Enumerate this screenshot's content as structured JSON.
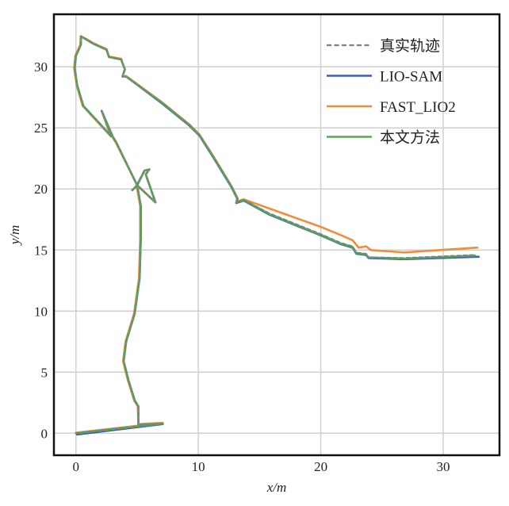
{
  "chart_data": {
    "type": "line",
    "title": "",
    "xlabel": "x/m",
    "ylabel": "y/m",
    "xlim": [
      -1.8,
      34.6
    ],
    "ylim": [
      -1.8,
      34.3
    ],
    "xticks": [
      0,
      10,
      20,
      30
    ],
    "yticks": [
      0,
      5,
      10,
      15,
      20,
      25,
      30
    ],
    "grid": true,
    "legend_position": "top-right",
    "series": [
      {
        "name": "真实轨迹",
        "color": "#7f7f7f",
        "style": "dashed",
        "points": [
          [
            0,
            0
          ],
          [
            7.1,
            0.8
          ],
          [
            5.1,
            0.7
          ],
          [
            5.1,
            2.2
          ],
          [
            4.8,
            2.7
          ],
          [
            4.3,
            4.3
          ],
          [
            3.9,
            5.9
          ],
          [
            4.1,
            7.5
          ],
          [
            4.8,
            9.8
          ],
          [
            5.2,
            12.7
          ],
          [
            5.3,
            16.0
          ],
          [
            5.3,
            18.6
          ],
          [
            5.0,
            20.3
          ],
          [
            5.6,
            21.5
          ],
          [
            6.0,
            21.6
          ],
          [
            5.7,
            21.2
          ],
          [
            6.5,
            18.9
          ],
          [
            5.0,
            20.3
          ],
          [
            4.6,
            19.9
          ],
          [
            5.0,
            20.3
          ],
          [
            3.3,
            23.8
          ],
          [
            3.0,
            24.3
          ],
          [
            2.1,
            26.4
          ],
          [
            2.9,
            24.3
          ],
          [
            0.6,
            26.8
          ],
          [
            0.1,
            28.5
          ],
          [
            -0.1,
            29.9
          ],
          [
            0.0,
            30.9
          ],
          [
            0.4,
            31.8
          ],
          [
            0.4,
            32.5
          ],
          [
            0.9,
            32.2
          ],
          [
            1.4,
            31.9
          ],
          [
            2.5,
            31.4
          ],
          [
            2.7,
            30.8
          ],
          [
            3.7,
            30.6
          ],
          [
            3.8,
            30.3
          ],
          [
            4.0,
            29.8
          ],
          [
            3.8,
            29.2
          ],
          [
            4.1,
            29.2
          ],
          [
            7.1,
            27.0
          ],
          [
            9.3,
            25.2
          ],
          [
            10.1,
            24.4
          ],
          [
            11.3,
            22.5
          ],
          [
            12.7,
            20.2
          ],
          [
            13.2,
            19.2
          ],
          [
            13.1,
            18.9
          ],
          [
            13.7,
            19.1
          ],
          [
            15.8,
            18.0
          ],
          [
            20.0,
            16.3
          ],
          [
            21.6,
            15.6
          ],
          [
            22.6,
            15.3
          ],
          [
            22.9,
            14.8
          ],
          [
            23.7,
            14.7
          ],
          [
            23.9,
            14.4
          ],
          [
            26.8,
            14.35
          ],
          [
            32.6,
            14.6
          ]
        ]
      },
      {
        "name": "LIO-SAM",
        "color": "#3a5fb0",
        "style": "solid",
        "points": [
          [
            0.1,
            -0.1
          ],
          [
            7.1,
            0.75
          ],
          [
            5.1,
            0.7
          ],
          [
            5.1,
            2.2
          ],
          [
            4.8,
            2.7
          ],
          [
            4.3,
            4.3
          ],
          [
            3.9,
            5.9
          ],
          [
            4.1,
            7.5
          ],
          [
            4.8,
            9.8
          ],
          [
            5.2,
            12.7
          ],
          [
            5.3,
            16.0
          ],
          [
            5.3,
            18.6
          ],
          [
            5.0,
            20.3
          ],
          [
            5.6,
            21.5
          ],
          [
            6.0,
            21.6
          ],
          [
            5.7,
            21.2
          ],
          [
            6.5,
            18.9
          ],
          [
            5.0,
            20.3
          ],
          [
            4.6,
            19.9
          ],
          [
            5.0,
            20.3
          ],
          [
            3.3,
            23.8
          ],
          [
            3.0,
            24.3
          ],
          [
            2.1,
            26.4
          ],
          [
            2.9,
            24.3
          ],
          [
            0.6,
            26.8
          ],
          [
            0.1,
            28.5
          ],
          [
            -0.1,
            29.9
          ],
          [
            0.0,
            30.9
          ],
          [
            0.4,
            31.8
          ],
          [
            0.4,
            32.5
          ],
          [
            0.9,
            32.2
          ],
          [
            1.4,
            31.9
          ],
          [
            2.5,
            31.4
          ],
          [
            2.7,
            30.8
          ],
          [
            3.7,
            30.6
          ],
          [
            3.8,
            30.3
          ],
          [
            4.0,
            29.8
          ],
          [
            3.8,
            29.2
          ],
          [
            4.1,
            29.2
          ],
          [
            7.1,
            26.95
          ],
          [
            9.3,
            25.15
          ],
          [
            10.1,
            24.35
          ],
          [
            11.3,
            22.45
          ],
          [
            12.7,
            20.15
          ],
          [
            13.2,
            19.15
          ],
          [
            13.1,
            18.85
          ],
          [
            13.7,
            19.05
          ],
          [
            15.8,
            17.9
          ],
          [
            20.0,
            16.2
          ],
          [
            21.6,
            15.5
          ],
          [
            22.6,
            15.2
          ],
          [
            22.9,
            14.7
          ],
          [
            23.7,
            14.6
          ],
          [
            23.9,
            14.35
          ],
          [
            26.8,
            14.25
          ],
          [
            32.9,
            14.45
          ]
        ]
      },
      {
        "name": "FAST_LIO2",
        "color": "#f28c3c",
        "style": "solid",
        "points": [
          [
            0,
            0.05
          ],
          [
            7.1,
            0.85
          ],
          [
            5.1,
            0.75
          ],
          [
            5.05,
            2.2
          ],
          [
            4.75,
            2.7
          ],
          [
            4.25,
            4.3
          ],
          [
            3.85,
            5.9
          ],
          [
            4.05,
            7.5
          ],
          [
            4.75,
            9.8
          ],
          [
            5.15,
            12.7
          ],
          [
            5.25,
            16.0
          ],
          [
            5.25,
            18.6
          ],
          [
            4.95,
            20.3
          ],
          [
            5.6,
            21.5
          ],
          [
            6.0,
            21.6
          ],
          [
            5.7,
            21.2
          ],
          [
            6.5,
            18.9
          ],
          [
            5.0,
            20.3
          ],
          [
            4.6,
            19.9
          ],
          [
            5.0,
            20.3
          ],
          [
            3.25,
            23.8
          ],
          [
            2.95,
            24.3
          ],
          [
            2.1,
            26.4
          ],
          [
            2.85,
            24.3
          ],
          [
            0.55,
            26.8
          ],
          [
            0.05,
            28.5
          ],
          [
            -0.15,
            29.9
          ],
          [
            -0.05,
            30.9
          ],
          [
            0.35,
            31.8
          ],
          [
            0.4,
            32.5
          ],
          [
            0.9,
            32.25
          ],
          [
            1.4,
            31.95
          ],
          [
            2.5,
            31.45
          ],
          [
            2.7,
            30.85
          ],
          [
            3.7,
            30.65
          ],
          [
            3.8,
            30.3
          ],
          [
            4.0,
            29.8
          ],
          [
            3.8,
            29.2
          ],
          [
            4.1,
            29.25
          ],
          [
            7.1,
            27.05
          ],
          [
            9.3,
            25.25
          ],
          [
            10.1,
            24.45
          ],
          [
            11.3,
            22.55
          ],
          [
            12.7,
            20.25
          ],
          [
            13.2,
            19.25
          ],
          [
            13.1,
            18.95
          ],
          [
            13.7,
            19.15
          ],
          [
            15.8,
            18.4
          ],
          [
            20.0,
            16.9
          ],
          [
            21.7,
            16.2
          ],
          [
            22.6,
            15.8
          ],
          [
            23.1,
            15.2
          ],
          [
            23.7,
            15.3
          ],
          [
            24.1,
            15.0
          ],
          [
            26.8,
            14.8
          ],
          [
            32.8,
            15.2
          ]
        ]
      },
      {
        "name": "本文方法",
        "color": "#4caf50",
        "style": "solid",
        "points": [
          [
            0,
            0
          ],
          [
            7.1,
            0.8
          ],
          [
            5.1,
            0.7
          ],
          [
            5.1,
            2.2
          ],
          [
            4.8,
            2.7
          ],
          [
            4.3,
            4.3
          ],
          [
            3.9,
            5.9
          ],
          [
            4.1,
            7.5
          ],
          [
            4.8,
            9.8
          ],
          [
            5.2,
            12.7
          ],
          [
            5.3,
            16.0
          ],
          [
            5.3,
            18.6
          ],
          [
            5.0,
            20.3
          ],
          [
            5.6,
            21.5
          ],
          [
            6.0,
            21.6
          ],
          [
            5.7,
            21.2
          ],
          [
            6.5,
            18.9
          ],
          [
            5.0,
            20.3
          ],
          [
            4.6,
            19.9
          ],
          [
            5.0,
            20.3
          ],
          [
            3.3,
            23.8
          ],
          [
            3.0,
            24.3
          ],
          [
            2.1,
            26.4
          ],
          [
            2.9,
            24.3
          ],
          [
            0.6,
            26.8
          ],
          [
            0.1,
            28.5
          ],
          [
            -0.1,
            29.9
          ],
          [
            0.0,
            30.9
          ],
          [
            0.4,
            31.8
          ],
          [
            0.4,
            32.5
          ],
          [
            0.9,
            32.2
          ],
          [
            1.4,
            31.9
          ],
          [
            2.5,
            31.4
          ],
          [
            2.7,
            30.8
          ],
          [
            3.7,
            30.6
          ],
          [
            3.8,
            30.3
          ],
          [
            4.0,
            29.8
          ],
          [
            3.8,
            29.2
          ],
          [
            4.1,
            29.2
          ],
          [
            7.1,
            27.0
          ],
          [
            9.3,
            25.2
          ],
          [
            10.1,
            24.4
          ],
          [
            11.3,
            22.5
          ],
          [
            12.7,
            20.2
          ],
          [
            13.2,
            19.2
          ],
          [
            13.1,
            18.9
          ],
          [
            13.7,
            19.1
          ],
          [
            15.8,
            17.95
          ],
          [
            20.0,
            16.25
          ],
          [
            21.6,
            15.55
          ],
          [
            22.6,
            15.25
          ],
          [
            22.9,
            14.75
          ],
          [
            23.7,
            14.65
          ],
          [
            23.9,
            14.4
          ],
          [
            26.8,
            14.3
          ],
          [
            32.6,
            14.55
          ]
        ]
      }
    ]
  }
}
